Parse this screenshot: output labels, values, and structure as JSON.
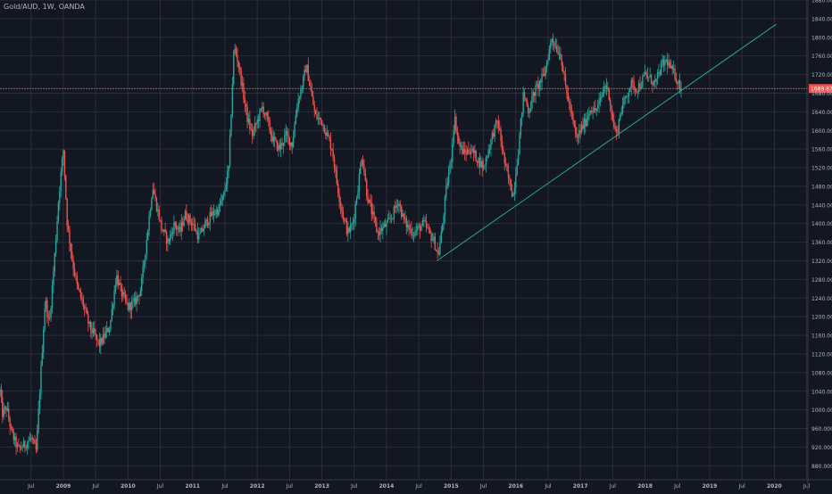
{
  "chart_data": {
    "type": "candlestick",
    "title": "Gold/AUD, 1W, OANDA",
    "instrument": "Gold/AUD",
    "interval": "1W",
    "source": "OANDA",
    "last_price": "1689.877",
    "ylim": [
      850,
      1880
    ],
    "y_ticks": [
      "880.000",
      "920.000",
      "960.000",
      "1000.000",
      "1040.000",
      "1080.000",
      "1120.000",
      "1160.000",
      "1200.000",
      "1240.000",
      "1280.000",
      "1320.000",
      "1360.000",
      "1400.000",
      "1440.000",
      "1480.000",
      "1520.000",
      "1560.000",
      "1600.000",
      "1640.000",
      "1680.000",
      "1720.000",
      "1760.000",
      "1800.000",
      "1840.000",
      "1880.000"
    ],
    "y_tick_values": [
      880,
      920,
      960,
      1000,
      1040,
      1080,
      1120,
      1160,
      1200,
      1240,
      1280,
      1320,
      1360,
      1400,
      1440,
      1480,
      1520,
      1560,
      1600,
      1640,
      1680,
      1720,
      1760,
      1800,
      1840,
      1880
    ],
    "x_ticks": [
      "Jul",
      "2009",
      "Jul",
      "2010",
      "Jul",
      "2011",
      "Jul",
      "2012",
      "Jul",
      "2013",
      "Jul",
      "2014",
      "Jul",
      "2015",
      "Jul",
      "2016",
      "Jul",
      "2017",
      "Jul",
      "2018",
      "Jul",
      "2019",
      "Jul",
      "2020",
      "Jul"
    ],
    "x_tick_values": [
      2008.5,
      2009.0,
      2009.5,
      2010.0,
      2010.5,
      2011.0,
      2011.5,
      2012.0,
      2012.5,
      2013.0,
      2013.5,
      2014.0,
      2014.5,
      2015.0,
      2015.5,
      2016.0,
      2016.5,
      2017.0,
      2017.5,
      2018.0,
      2018.5,
      2019.0,
      2019.5,
      2020.0,
      2020.5
    ],
    "xlim": [
      2008.02,
      2020.52
    ],
    "price_path": [
      [
        2008.02,
        1040
      ],
      [
        2008.06,
        990
      ],
      [
        2008.12,
        1005
      ],
      [
        2008.2,
        950
      ],
      [
        2008.3,
        915
      ],
      [
        2008.4,
        925
      ],
      [
        2008.5,
        940
      ],
      [
        2008.58,
        910
      ],
      [
        2008.66,
        1100
      ],
      [
        2008.72,
        1240
      ],
      [
        2008.78,
        1180
      ],
      [
        2008.86,
        1320
      ],
      [
        2008.93,
        1460
      ],
      [
        2009.0,
        1560
      ],
      [
        2009.06,
        1400
      ],
      [
        2009.14,
        1320
      ],
      [
        2009.22,
        1260
      ],
      [
        2009.3,
        1230
      ],
      [
        2009.4,
        1180
      ],
      [
        2009.48,
        1160
      ],
      [
        2009.56,
        1140
      ],
      [
        2009.64,
        1160
      ],
      [
        2009.72,
        1180
      ],
      [
        2009.82,
        1290
      ],
      [
        2009.9,
        1250
      ],
      [
        2010.0,
        1220
      ],
      [
        2010.1,
        1230
      ],
      [
        2010.2,
        1260
      ],
      [
        2010.3,
        1380
      ],
      [
        2010.38,
        1480
      ],
      [
        2010.44,
        1440
      ],
      [
        2010.52,
        1390
      ],
      [
        2010.62,
        1360
      ],
      [
        2010.72,
        1400
      ],
      [
        2010.8,
        1380
      ],
      [
        2010.88,
        1420
      ],
      [
        2011.0,
        1400
      ],
      [
        2011.1,
        1370
      ],
      [
        2011.2,
        1400
      ],
      [
        2011.3,
        1420
      ],
      [
        2011.4,
        1430
      ],
      [
        2011.48,
        1460
      ],
      [
        2011.56,
        1520
      ],
      [
        2011.64,
        1780
      ],
      [
        2011.7,
        1750
      ],
      [
        2011.76,
        1700
      ],
      [
        2011.84,
        1630
      ],
      [
        2011.92,
        1590
      ],
      [
        2012.0,
        1620
      ],
      [
        2012.08,
        1650
      ],
      [
        2012.16,
        1620
      ],
      [
        2012.24,
        1580
      ],
      [
        2012.34,
        1560
      ],
      [
        2012.44,
        1590
      ],
      [
        2012.54,
        1570
      ],
      [
        2012.62,
        1660
      ],
      [
        2012.7,
        1700
      ],
      [
        2012.76,
        1740
      ],
      [
        2012.82,
        1690
      ],
      [
        2012.9,
        1630
      ],
      [
        2013.0,
        1620
      ],
      [
        2013.08,
        1590
      ],
      [
        2013.16,
        1560
      ],
      [
        2013.24,
        1480
      ],
      [
        2013.32,
        1420
      ],
      [
        2013.4,
        1380
      ],
      [
        2013.48,
        1400
      ],
      [
        2013.56,
        1480
      ],
      [
        2013.62,
        1550
      ],
      [
        2013.7,
        1460
      ],
      [
        2013.78,
        1420
      ],
      [
        2013.86,
        1380
      ],
      [
        2013.94,
        1390
      ],
      [
        2014.02,
        1400
      ],
      [
        2014.1,
        1420
      ],
      [
        2014.18,
        1450
      ],
      [
        2014.26,
        1410
      ],
      [
        2014.34,
        1390
      ],
      [
        2014.42,
        1380
      ],
      [
        2014.5,
        1390
      ],
      [
        2014.58,
        1400
      ],
      [
        2014.66,
        1380
      ],
      [
        2014.74,
        1360
      ],
      [
        2014.8,
        1330
      ],
      [
        2014.86,
        1390
      ],
      [
        2014.93,
        1480
      ],
      [
        2015.0,
        1540
      ],
      [
        2015.05,
        1630
      ],
      [
        2015.12,
        1570
      ],
      [
        2015.2,
        1550
      ],
      [
        2015.3,
        1560
      ],
      [
        2015.4,
        1540
      ],
      [
        2015.5,
        1520
      ],
      [
        2015.58,
        1560
      ],
      [
        2015.66,
        1600
      ],
      [
        2015.72,
        1620
      ],
      [
        2015.78,
        1570
      ],
      [
        2015.84,
        1520
      ],
      [
        2015.92,
        1480
      ],
      [
        2015.96,
        1460
      ],
      [
        2016.04,
        1560
      ],
      [
        2016.12,
        1680
      ],
      [
        2016.2,
        1640
      ],
      [
        2016.28,
        1680
      ],
      [
        2016.36,
        1700
      ],
      [
        2016.44,
        1720
      ],
      [
        2016.5,
        1760
      ],
      [
        2016.56,
        1800
      ],
      [
        2016.62,
        1780
      ],
      [
        2016.7,
        1760
      ],
      [
        2016.76,
        1700
      ],
      [
        2016.82,
        1660
      ],
      [
        2016.88,
        1620
      ],
      [
        2016.94,
        1580
      ],
      [
        2017.0,
        1600
      ],
      [
        2017.08,
        1620
      ],
      [
        2017.16,
        1650
      ],
      [
        2017.22,
        1640
      ],
      [
        2017.3,
        1660
      ],
      [
        2017.38,
        1700
      ],
      [
        2017.44,
        1680
      ],
      [
        2017.5,
        1620
      ],
      [
        2017.56,
        1590
      ],
      [
        2017.62,
        1640
      ],
      [
        2017.7,
        1670
      ],
      [
        2017.78,
        1700
      ],
      [
        2017.86,
        1690
      ],
      [
        2017.94,
        1700
      ],
      [
        2018.0,
        1720
      ],
      [
        2018.08,
        1710
      ],
      [
        2018.16,
        1700
      ],
      [
        2018.26,
        1740
      ],
      [
        2018.34,
        1750
      ],
      [
        2018.4,
        1730
      ],
      [
        2018.46,
        1720
      ],
      [
        2018.52,
        1700
      ],
      [
        2018.56,
        1690
      ]
    ],
    "trendline": {
      "x": [
        2014.78,
        2020.03
      ],
      "y": [
        1320,
        1828
      ]
    },
    "colors": {
      "background": "#131722",
      "grid": "#2a2e39",
      "up": "#26a69a",
      "down": "#ef5350",
      "trendline": "#26a69a",
      "price_line": "#ef5350",
      "axis_text": "#b2b5be"
    }
  }
}
